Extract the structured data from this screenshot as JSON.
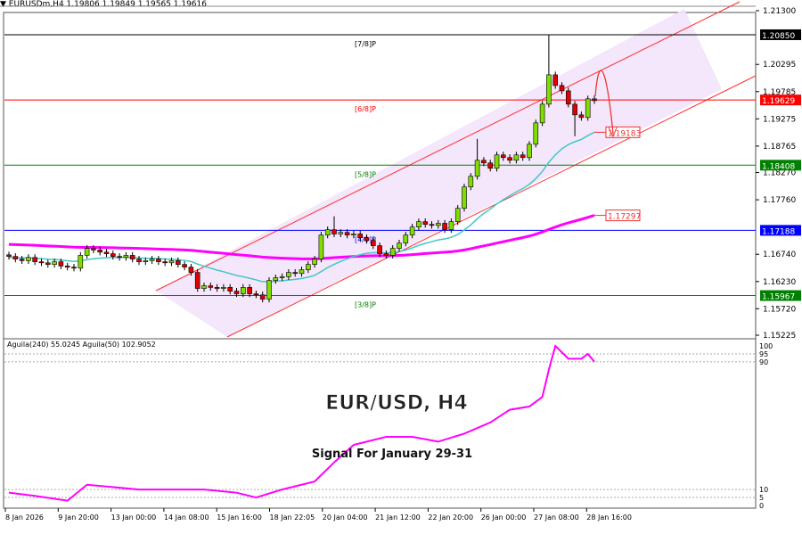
{
  "header": {
    "symbol_line": "EURUSDm,H4  1.19806 1.19849 1.19565 1.19616"
  },
  "overlay": {
    "title": "EUR/USD, H4",
    "subtitle": "Signal For January 29-31"
  },
  "chart_data": [
    {
      "type": "candlestick",
      "ylim": [
        1.15225,
        1.213
      ],
      "y_ticks": [
        "1.21300",
        "1.20295",
        "1.19785",
        "1.19275",
        "1.18765",
        "1.18270",
        "1.17760",
        "1.16740",
        "1.16230",
        "1.15720",
        "1.15225"
      ],
      "x_ticks": [
        "8 Jan 2026",
        "9 Jan 20:00",
        "13 Jan 00:00",
        "14 Jan 08:00",
        "15 Jan 16:00",
        "18 Jan 22:05",
        "20 Jan 04:00",
        "21 Jan 12:00",
        "22 Jan 20:00",
        "26 Jan 00:00",
        "27 Jan 08:00",
        "28 Jan 16:00"
      ],
      "closes": [
        1.167,
        1.1665,
        1.1662,
        1.1668,
        1.166,
        1.1658,
        1.1655,
        1.166,
        1.1652,
        1.165,
        1.1648,
        1.1672,
        1.1685,
        1.1682,
        1.1678,
        1.1675,
        1.167,
        1.1668,
        1.1672,
        1.1665,
        1.166,
        1.1662,
        1.1665,
        1.166,
        1.1658,
        1.1662,
        1.1655,
        1.165,
        1.164,
        1.161,
        1.1615,
        1.1612,
        1.161,
        1.1612,
        1.1605,
        1.16,
        1.1612,
        1.16,
        1.1598,
        1.159,
        1.1625,
        1.163,
        1.1632,
        1.164,
        1.1638,
        1.1645,
        1.1655,
        1.1665,
        1.171,
        1.172,
        1.1712,
        1.1715,
        1.171,
        1.1712,
        1.1705,
        1.17,
        1.169,
        1.1675,
        1.1672,
        1.1685,
        1.1695,
        1.171,
        1.1725,
        1.1735,
        1.173,
        1.1728,
        1.1732,
        1.172,
        1.1735,
        1.176,
        1.18,
        1.182,
        1.185,
        1.1845,
        1.1835,
        1.186,
        1.1855,
        1.185,
        1.186,
        1.1855,
        1.188,
        1.192,
        1.1955,
        1.201,
        1.199,
        1.198,
        1.1955,
        1.1935,
        1.193,
        1.1965,
        1.19616
      ],
      "extreme_wicks": {
        "50": 1.1745,
        "72": 1.189,
        "83": 1.2085,
        "87": 1.1895
      },
      "levels": [
        {
          "name": "[7/8]P",
          "value": "1.20850",
          "color": "#000000"
        },
        {
          "name": "[6/8]P",
          "value": "1.19629",
          "color": "#ff0000"
        },
        {
          "name": "[5/8]P",
          "value": "1.18408",
          "color": "#008000"
        },
        {
          "name": "[4/8]P",
          "value": "1.17188",
          "color": "#0000ff"
        },
        {
          "name": "[3/8]P",
          "value": "1.15967",
          "color": "#008000"
        }
      ],
      "ma_labels": {
        "fast": "1.19183",
        "slow": "1.17297"
      },
      "colors": {
        "bull": "#7fdd00",
        "bear": "#e00000",
        "fast_ma": "#40c8c8",
        "slow_ma": "#ff00ff",
        "channel": "#ff3030",
        "channel_fill": "#f3e3fb"
      }
    },
    {
      "type": "line",
      "legend": "Aguila(240) 55.0245  Aguila(50) 102.9052",
      "ylim": [
        0,
        100
      ],
      "y_ticks": [
        "100",
        "95",
        "90",
        "10",
        "5",
        "0"
      ],
      "x_candle_index": [
        0,
        4,
        9,
        12,
        20,
        30,
        35,
        38,
        42,
        47,
        50,
        53,
        58,
        62,
        66,
        70,
        74,
        77,
        80,
        82,
        83,
        84,
        86,
        88,
        89,
        90
      ],
      "values": [
        8,
        6,
        3,
        13,
        10,
        10,
        8,
        5,
        10,
        15,
        27,
        38,
        43,
        43,
        40,
        45,
        52,
        60,
        62,
        68,
        85,
        100,
        92,
        92,
        95,
        90
      ],
      "color": "#ff00ff"
    }
  ]
}
